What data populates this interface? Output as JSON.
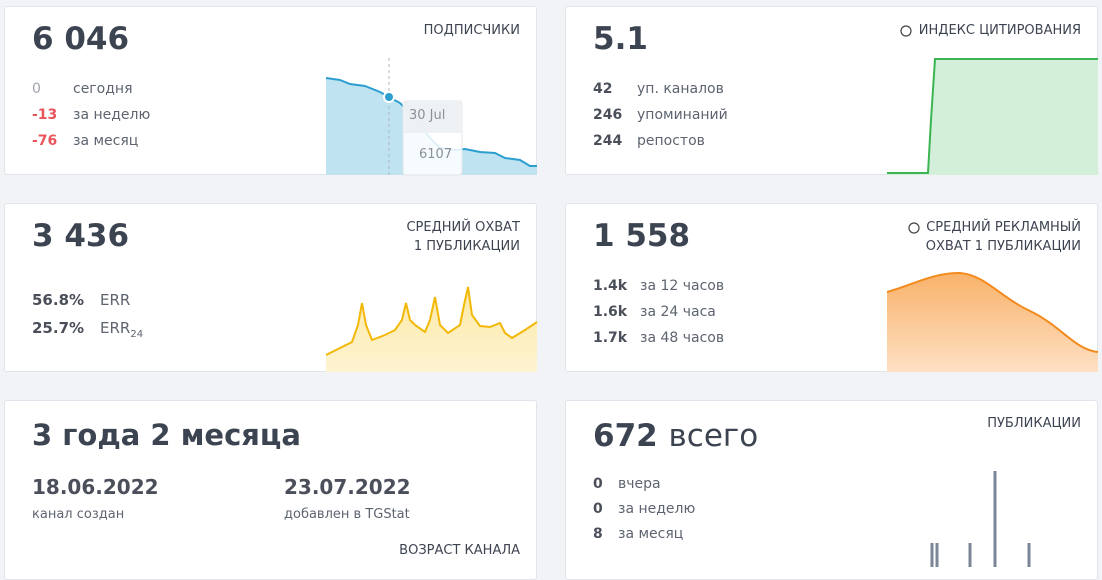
{
  "cards": [
    {
      "value": "6 046",
      "label": "ПОДПИСЧИКИ",
      "stats": [
        {
          "value": "0",
          "label": "сегодня"
        },
        {
          "value": "-13",
          "label": "за неделю"
        },
        {
          "value": "-76",
          "label": "за месяц"
        }
      ],
      "tooltip": {
        "date": "30 Jul",
        "value": "6107"
      }
    },
    {
      "value": "5.1",
      "label": "ИНДЕКС ЦИТИРОВАНИЯ",
      "stats": [
        {
          "value": "42",
          "label": "уп. каналов"
        },
        {
          "value": "246",
          "label": "упоминаний"
        },
        {
          "value": "244",
          "label": "репостов"
        }
      ]
    },
    {
      "value": "3 436",
      "label_lines": [
        "СРЕДНИЙ ОХВАТ",
        "1 ПУБЛИКАЦИИ"
      ],
      "stats": [
        {
          "value": "56.8%",
          "label": "ERR"
        },
        {
          "value": "25.7%",
          "label": "ERR",
          "sub": "24"
        }
      ]
    },
    {
      "value": "1 558",
      "label_lines": [
        "СРЕДНИЙ РЕКЛАМНЫЙ",
        "ОХВАТ 1 ПУБЛИКАЦИИ"
      ],
      "stats": [
        {
          "value": "1.4k",
          "label": "за 12 часов"
        },
        {
          "value": "1.6k",
          "label": "за 24 часа"
        },
        {
          "value": "1.7k",
          "label": "за 48 часов"
        }
      ]
    },
    {
      "value": "3 года 2 месяца",
      "label": "ВОЗРАСТ КАНАЛА",
      "dates": [
        {
          "value": "18.06.2022",
          "label": "канал создан"
        },
        {
          "value": "23.07.2022",
          "label": "добавлен в TGStat"
        }
      ]
    },
    {
      "value": "672",
      "unit": "всего",
      "label": "ПУБЛИКАЦИИ",
      "stats": [
        {
          "value": "0",
          "label": "вчера"
        },
        {
          "value": "0",
          "label": "за неделю"
        },
        {
          "value": "8",
          "label": "за месяц"
        }
      ]
    }
  ]
}
